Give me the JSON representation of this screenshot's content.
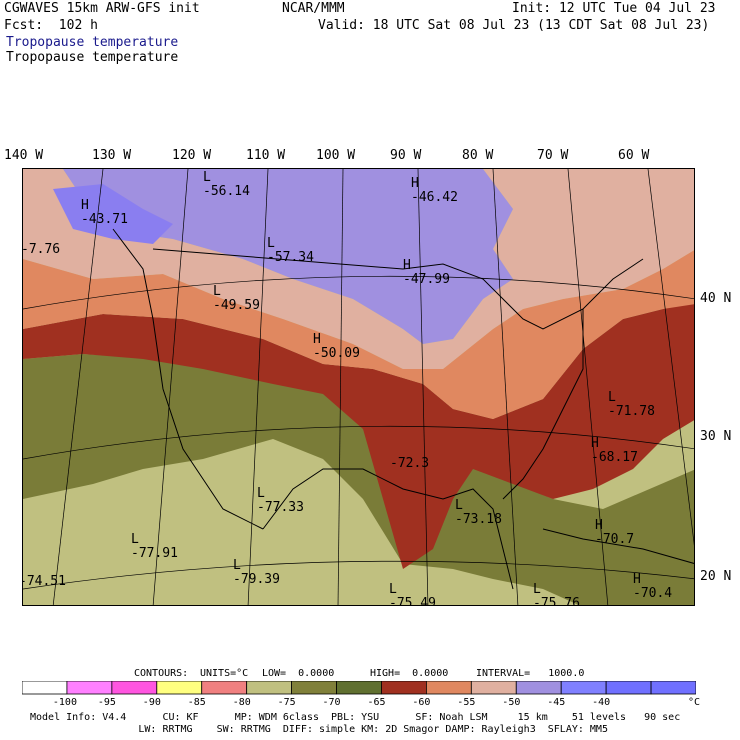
{
  "header": {
    "model": "CGWAVES 15km ARW-GFS init",
    "org": "NCAR/MMM",
    "init": "Init: 12 UTC Tue 04 Jul 23",
    "fcst": "Fcst:  102 h",
    "valid": "Valid: 18 UTC Sat 08 Jul 23 (13 CDT Sat 08 Jul 23)",
    "field1": "Tropopause temperature",
    "field2": "Tropopause temperature"
  },
  "lon_labels": [
    "140 W",
    "130 W",
    "120 W",
    "110 W",
    "100 W",
    "90 W",
    "80 W",
    "70 W",
    "60 W"
  ],
  "lat_labels": [
    "40 N",
    "30 N",
    "20 N"
  ],
  "map_labels": [
    {
      "kind": "L",
      "value": "-56.14"
    },
    {
      "kind": "H",
      "value": "-46.42"
    },
    {
      "kind": "H",
      "value": "-43.71"
    },
    {
      "kind": "",
      "value": "-7.76"
    },
    {
      "kind": "L",
      "value": "-57.34"
    },
    {
      "kind": "H",
      "value": "-47.99"
    },
    {
      "kind": "L",
      "value": "-49.59"
    },
    {
      "kind": "H",
      "value": "-50.09"
    },
    {
      "kind": "L",
      "value": "-71.78"
    },
    {
      "kind": "H",
      "value": "-68.17"
    },
    {
      "kind": "",
      "value": "-72.3"
    },
    {
      "kind": "L",
      "value": "-77.33"
    },
    {
      "kind": "L",
      "value": "-73.18"
    },
    {
      "kind": "H",
      "value": "-70.7"
    },
    {
      "kind": "L",
      "value": "-77.91"
    },
    {
      "kind": "L",
      "value": "-79.39"
    },
    {
      "kind": "",
      "value": "-74.51"
    },
    {
      "kind": "L",
      "value": "-75.49"
    },
    {
      "kind": "L",
      "value": "-75.76"
    },
    {
      "kind": "H",
      "value": "-70.4"
    }
  ],
  "contours": {
    "title": "CONTOURS:",
    "units": "UNITS=°C",
    "low": "LOW=  0.0000",
    "high": "HIGH=  0.0000",
    "interval": "INTERVAL=   1000.0"
  },
  "colorbar": {
    "colors": [
      "#ffffff",
      "#ff80ff",
      "#ff55e0",
      "#ffff80",
      "#f08080",
      "#c0c080",
      "#80803a",
      "#607030",
      "#a03020",
      "#e08860",
      "#e0b0a0",
      "#a090e0",
      "#8080ff",
      "#7070ff",
      "#7070ff"
    ],
    "ticks": [
      "-100",
      "-95",
      "-90",
      "-85",
      "-80",
      "-75",
      "-70",
      "-65",
      "-60",
      "-55",
      "-50",
      "-45",
      "-40"
    ],
    "unit": "°C"
  },
  "footer": {
    "line1": "Model Info: V4.4      CU: KF      MP: WDM 6class  PBL: YSU      SF: Noah LSM     15 km    51 levels   90 sec",
    "line2": "                  LW: RRTMG    SW: RRTMG  DIFF: simple KM: 2D Smagor DAMP: Rayleigh3  SFLAY: MM5"
  }
}
